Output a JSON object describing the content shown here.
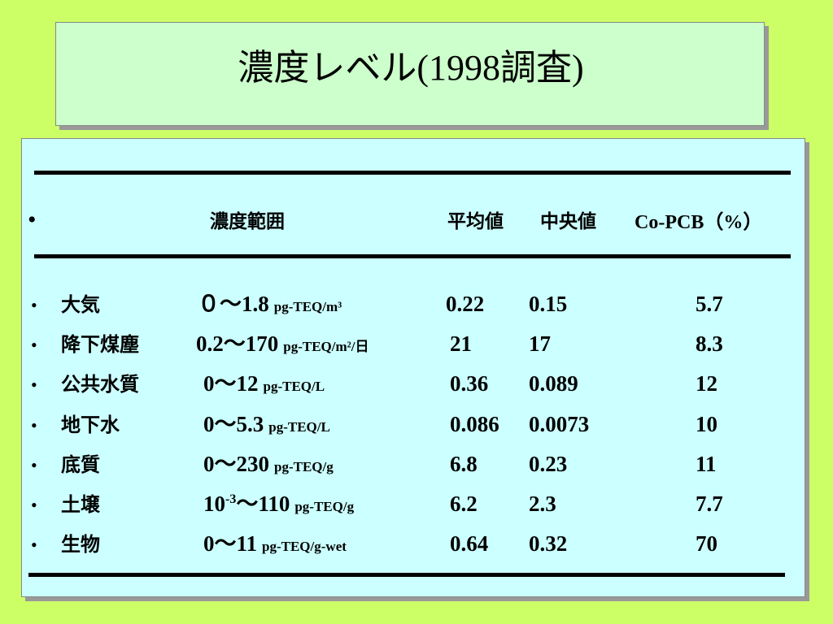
{
  "title": {
    "main": "濃度レベル",
    "paren": "(1998",
    "suffix": "調査",
    "close": ")"
  },
  "table": {
    "bullet": "•",
    "header": {
      "range": "濃度範囲",
      "mean": "平均値",
      "median": "中央値",
      "copcb": "Co-PCB（%）"
    },
    "rows": [
      {
        "name": "大気",
        "range": "０～1.8",
        "unit": "pg-TEQ/m³",
        "mean": "0.22",
        "median": "0.15",
        "copcb": "5.7"
      },
      {
        "name": "降下煤塵",
        "range": "0.2～170",
        "unit": "pg-TEQ/m²/日",
        "mean": "21",
        "median": "17",
        "copcb": "8.3"
      },
      {
        "name": "公共水質",
        "range": "0～12",
        "unit": "pg-TEQ/L",
        "mean": "0.36",
        "median": "0.089",
        "copcb": "12"
      },
      {
        "name": "地下水",
        "range": "0～5.3",
        "unit": "pg-TEQ/L",
        "mean": "0.086",
        "median": "0.0073",
        "copcb": "10"
      },
      {
        "name": "底質",
        "range": "0～230",
        "unit": "pg-TEQ/g",
        "mean": "6.8",
        "median": "0.23",
        "copcb": "11"
      },
      {
        "name": "土壌",
        "range_base": "10",
        "range_exp": "-3",
        "range": "～110",
        "unit": "pg-TEQ/g",
        "mean": "6.2",
        "median": "2.3",
        "copcb": "7.7"
      },
      {
        "name": "生物",
        "range": "0～11",
        "unit": "pg-TEQ/g-wet",
        "mean": "0.64",
        "median": "0.32",
        "copcb": "70"
      }
    ]
  }
}
